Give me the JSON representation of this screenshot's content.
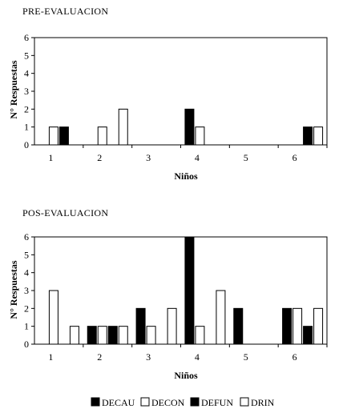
{
  "chart_data": [
    {
      "type": "bar",
      "title": "PRE-EVALUACION",
      "xlabel": "Niños",
      "ylabel": "N° Respuestas",
      "ylim": [
        0,
        6
      ],
      "yticks": [
        0,
        1,
        2,
        3,
        4,
        5,
        6
      ],
      "categories": [
        "1",
        "2",
        "3",
        "4",
        "5",
        "6"
      ],
      "series": [
        {
          "name": "DECAU",
          "values": [
            null,
            null,
            null,
            2,
            null,
            null
          ]
        },
        {
          "name": "DECON",
          "values": [
            1,
            1,
            null,
            1,
            null,
            null
          ]
        },
        {
          "name": "DEFUN",
          "values": [
            1,
            null,
            null,
            null,
            null,
            1
          ]
        },
        {
          "name": "DRIN",
          "values": [
            null,
            2,
            null,
            null,
            null,
            1
          ]
        }
      ],
      "grid": false
    },
    {
      "type": "bar",
      "title": "POS-EVALUACION",
      "xlabel": "Niños",
      "ylabel": "N° Respuestas",
      "ylim": [
        0,
        6
      ],
      "yticks": [
        0,
        1,
        2,
        3,
        4,
        5,
        6
      ],
      "categories": [
        "1",
        "2",
        "3",
        "4",
        "5",
        "6"
      ],
      "series": [
        {
          "name": "DECAU",
          "values": [
            null,
            1,
            2,
            6,
            2,
            2
          ]
        },
        {
          "name": "DECON",
          "values": [
            3,
            1,
            1,
            1,
            null,
            2
          ]
        },
        {
          "name": "DEFUN",
          "values": [
            null,
            1,
            null,
            null,
            null,
            1
          ]
        },
        {
          "name": "DRIN",
          "values": [
            1,
            1,
            2,
            3,
            null,
            2
          ]
        }
      ],
      "grid": false
    }
  ],
  "legend": {
    "position": "bottom",
    "items": [
      {
        "label": "DECAU",
        "color": "#000000"
      },
      {
        "label": "DECON",
        "color": "#ffffff"
      },
      {
        "label": "DEFUN",
        "color": "#000000"
      },
      {
        "label": "DRIN",
        "color": "#ffffff"
      }
    ]
  }
}
